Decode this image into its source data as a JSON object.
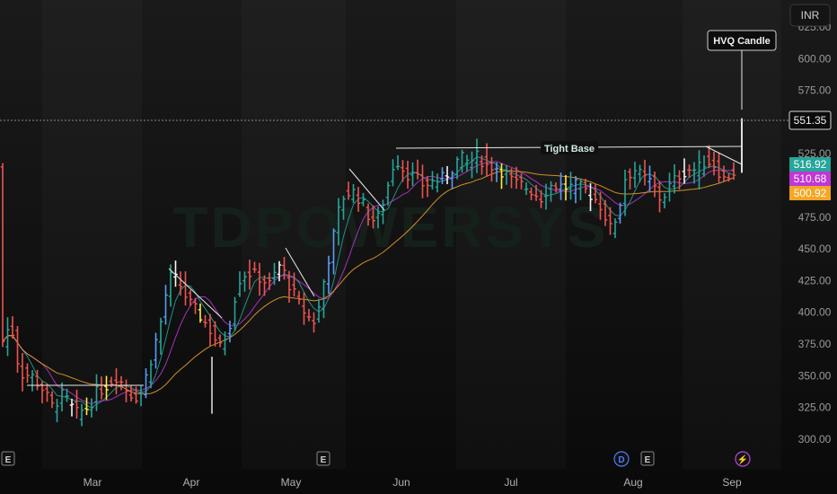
{
  "currency": "INR",
  "watermark": "TDPOWERSYS",
  "chart_data": {
    "type": "candlestick",
    "y_ticks": [
      300,
      325,
      350,
      375,
      400,
      425,
      450,
      475,
      500,
      525,
      550,
      575,
      600,
      625
    ],
    "y_tick_labels": [
      "300.00",
      "325.00",
      "350.00",
      "375.00",
      "400.00",
      "425.00",
      "450.00",
      "475.00",
      "500.00",
      "525.00",
      "550.00",
      "575.00",
      "600.00",
      "625.00"
    ],
    "ylim": [
      290,
      632
    ],
    "x_months": [
      "Mar",
      "Apr",
      "May",
      "Jun",
      "Jul",
      "Aug",
      "Sep"
    ],
    "last_price": 551.35,
    "last_price_label": "551.35",
    "ma_labels": [
      {
        "value": 516.92,
        "label": "516.92",
        "color": "#26a69a"
      },
      {
        "value": 510.68,
        "label": "510.68",
        "color": "#c037d6"
      },
      {
        "value": 500.92,
        "label": "500.92",
        "color": "#f5a623"
      }
    ],
    "annotations": [
      {
        "text": "Tight Base"
      },
      {
        "text": "HVQ Candle"
      }
    ],
    "event_markers": [
      {
        "symbol": "E"
      },
      {
        "symbol": "E"
      },
      {
        "symbol": "D"
      },
      {
        "symbol": "E"
      },
      {
        "symbol": "⚡"
      }
    ],
    "price_path": [
      [
        0,
        372
      ],
      [
        12,
        392
      ],
      [
        22,
        352
      ],
      [
        35,
        350
      ],
      [
        47,
        340
      ],
      [
        58,
        326
      ],
      [
        70,
        335
      ],
      [
        85,
        320
      ],
      [
        98,
        325
      ],
      [
        108,
        337
      ],
      [
        118,
        342
      ],
      [
        130,
        350
      ],
      [
        140,
        340
      ],
      [
        150,
        333
      ],
      [
        158,
        338
      ],
      [
        170,
        368
      ],
      [
        180,
        395
      ],
      [
        188,
        428
      ],
      [
        198,
        425
      ],
      [
        210,
        408
      ],
      [
        222,
        398
      ],
      [
        235,
        385
      ],
      [
        245,
        372
      ],
      [
        255,
        388
      ],
      [
        265,
        425
      ],
      [
        275,
        432
      ],
      [
        288,
        428
      ],
      [
        300,
        422
      ],
      [
        312,
        438
      ],
      [
        322,
        422
      ],
      [
        334,
        405
      ],
      [
        345,
        395
      ],
      [
        352,
        392
      ],
      [
        362,
        430
      ],
      [
        372,
        462
      ],
      [
        380,
        490
      ],
      [
        392,
        496
      ],
      [
        402,
        488
      ],
      [
        412,
        474
      ],
      [
        420,
        472
      ],
      [
        430,
        495
      ],
      [
        440,
        522
      ],
      [
        452,
        510
      ],
      [
        462,
        506
      ],
      [
        472,
        500
      ],
      [
        482,
        503
      ],
      [
        492,
        505
      ],
      [
        502,
        512
      ],
      [
        512,
        522
      ],
      [
        522,
        518
      ],
      [
        532,
        523
      ],
      [
        542,
        516
      ],
      [
        552,
        515
      ],
      [
        562,
        510
      ],
      [
        572,
        502
      ],
      [
        582,
        500
      ],
      [
        592,
        496
      ],
      [
        602,
        490
      ],
      [
        612,
        500
      ],
      [
        622,
        500
      ],
      [
        632,
        498
      ],
      [
        642,
        500
      ],
      [
        652,
        496
      ],
      [
        662,
        490
      ],
      [
        670,
        483
      ],
      [
        680,
        465
      ],
      [
        688,
        478
      ],
      [
        696,
        506
      ],
      [
        706,
        513
      ],
      [
        716,
        506
      ],
      [
        726,
        502
      ],
      [
        736,
        488
      ],
      [
        746,
        500
      ],
      [
        756,
        508
      ],
      [
        766,
        513
      ],
      [
        776,
        512
      ],
      [
        786,
        520
      ],
      [
        796,
        516
      ],
      [
        806,
        505
      ],
      [
        816,
        510
      ],
      [
        826,
        514
      ]
    ]
  }
}
